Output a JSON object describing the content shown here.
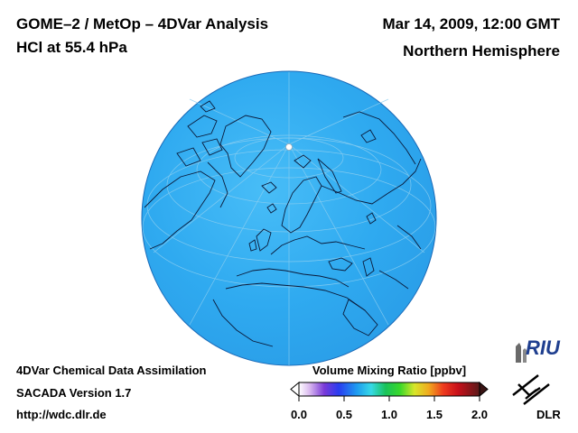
{
  "header": {
    "title_line1": "GOME–2 / MetOp – 4DVar Analysis",
    "title_line2": "HCl at 55.4 hPa",
    "datetime": "Mar 14, 2009, 12:00 GMT",
    "region": "Northern Hemisphere"
  },
  "footer": {
    "line1": "4DVar Chemical Data Assimilation",
    "line2": "SACADA Version 1.7",
    "line3": "http://wdc.dlr.de"
  },
  "colorbar": {
    "title": "Volume Mixing Ratio [ppbv]",
    "ticks": [
      "0.0",
      "0.5",
      "1.0",
      "1.5",
      "2.0"
    ],
    "min": 0.0,
    "max": 2.0
  },
  "map": {
    "projection": "orthographic-north-polar",
    "field_color": "#33aaee",
    "field_value_approx": 0.45
  },
  "logos": {
    "riu": "RIU",
    "dlr": "DLR"
  }
}
